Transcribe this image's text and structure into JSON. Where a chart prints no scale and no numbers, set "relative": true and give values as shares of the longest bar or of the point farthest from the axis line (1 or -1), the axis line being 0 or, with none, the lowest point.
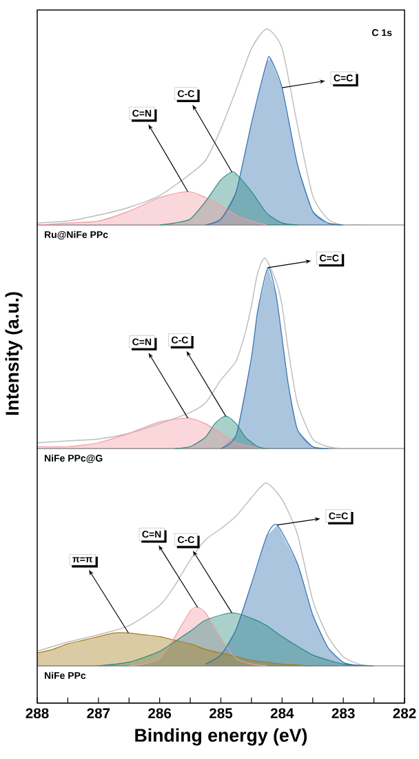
{
  "chart_data": [
    {
      "type": "area",
      "relative": true,
      "title": "Ru@NiFe PPc",
      "xlim": [
        288,
        282
      ],
      "tick_labels": false,
      "series": [
        {
          "type": "line",
          "color": "#bdbdbd",
          "x": [
            288,
            287.5,
            287,
            286.5,
            286,
            285.5,
            285.25,
            285,
            284.75,
            284.5,
            284.25,
            284,
            283.75,
            283.5,
            283.25,
            283,
            282.5,
            282
          ],
          "values": [
            0.01,
            0.02,
            0.05,
            0.09,
            0.15,
            0.26,
            0.33,
            0.49,
            0.69,
            0.9,
            1.0,
            0.9,
            0.51,
            0.15,
            0.03,
            0,
            0,
            0
          ]
        },
        {
          "color": "#f29ca3",
          "x": [
            288,
            287.5,
            287,
            286.5,
            286,
            285.54,
            285.25,
            285,
            284.75,
            284.5,
            284.25
          ],
          "values": [
            0,
            0.01,
            0.02,
            0.07,
            0.14,
            0.17,
            0.14,
            0.1,
            0.05,
            0.02,
            0
          ]
        },
        {
          "color": "#2a8a80",
          "x": [
            286,
            285.75,
            285.5,
            285.25,
            285,
            284.82,
            284.75,
            284.5,
            284.25,
            284,
            283.75
          ],
          "values": [
            0,
            0.01,
            0.03,
            0.12,
            0.23,
            0.27,
            0.26,
            0.17,
            0.06,
            0.01,
            0
          ]
        },
        {
          "color": "#2f6fad",
          "x": [
            285.25,
            285,
            284.75,
            284.5,
            284.25,
            284.19,
            284,
            283.75,
            283.5,
            283.25,
            283
          ],
          "values": [
            0,
            0.03,
            0.17,
            0.52,
            0.83,
            0.85,
            0.7,
            0.31,
            0.07,
            0.01,
            0
          ]
        }
      ],
      "annotations": [
        "C 1s",
        {
          "text": "C=N",
          "x": 285.54,
          "y": 0.17
        },
        {
          "text": "C-C",
          "x": 284.82,
          "y": 0.27
        },
        {
          "text": "C=C",
          "x": 284,
          "y": 0.7
        }
      ]
    },
    {
      "type": "area",
      "relative": true,
      "title": "NiFe PPc@G",
      "ylabel": "Intensity (a.u.)",
      "xlim": [
        288,
        282
      ],
      "tick_labels": false,
      "series": [
        {
          "type": "line",
          "color": "#bdbdbd",
          "x": [
            288,
            287.5,
            287,
            286.5,
            286,
            285.5,
            285.25,
            285,
            284.75,
            284.6,
            284.5,
            284.4,
            284.28,
            284.1,
            284,
            283.9,
            283.75,
            283.5,
            283.25,
            283,
            282.5,
            282
          ],
          "values": [
            0.03,
            0.04,
            0.05,
            0.08,
            0.13,
            0.19,
            0.24,
            0.36,
            0.46,
            0.61,
            0.75,
            0.92,
            1.0,
            0.88,
            0.75,
            0.52,
            0.24,
            0.05,
            0.01,
            0,
            0,
            0
          ]
        },
        {
          "color": "#f29ca3",
          "x": [
            288,
            287.5,
            287,
            286.5,
            286,
            285.54,
            285.25,
            285,
            284.75,
            284.5,
            284.25
          ],
          "values": [
            0.01,
            0.01,
            0.03,
            0.08,
            0.14,
            0.16,
            0.13,
            0.08,
            0.03,
            0.01,
            0
          ]
        },
        {
          "color": "#2a8a80",
          "x": [
            285.75,
            285.5,
            285.25,
            285.1,
            284.92,
            284.75,
            284.6,
            284.4,
            284.25
          ],
          "values": [
            0,
            0.01,
            0.06,
            0.13,
            0.17,
            0.13,
            0.06,
            0.01,
            0
          ]
        },
        {
          "color": "#2f6fad",
          "x": [
            285,
            284.75,
            284.5,
            284.4,
            284.23,
            284.1,
            284,
            283.9,
            283.75,
            283.5,
            283.25
          ],
          "values": [
            0,
            0.07,
            0.48,
            0.72,
            0.95,
            0.81,
            0.58,
            0.34,
            0.1,
            0.01,
            0
          ]
        }
      ],
      "annotations": [
        {
          "text": "C=N",
          "x": 285.54,
          "y": 0.16
        },
        {
          "text": "C-C",
          "x": 284.92,
          "y": 0.17
        },
        {
          "text": "C=C",
          "x": 284.23,
          "y": 0.95
        }
      ]
    },
    {
      "type": "area",
      "relative": true,
      "title": "NiFe PPc",
      "xlabel": "Binding energy (eV)",
      "xlim": [
        288,
        282
      ],
      "tick_labels": "x",
      "xticks": [
        288,
        287,
        286,
        285,
        284,
        283,
        282
      ],
      "series": [
        {
          "type": "line",
          "color": "#bdbdbd",
          "x": [
            288,
            287.5,
            287,
            286.5,
            286,
            285.75,
            285.5,
            285.25,
            285,
            284.75,
            284.5,
            284.26,
            284,
            283.75,
            283.5,
            283.25,
            283,
            282.75,
            282.5,
            282
          ],
          "values": [
            0.08,
            0.13,
            0.17,
            0.22,
            0.33,
            0.44,
            0.58,
            0.69,
            0.75,
            0.82,
            0.92,
            1.0,
            0.91,
            0.72,
            0.36,
            0.16,
            0.05,
            0.01,
            0,
            0
          ]
        },
        {
          "color": "#a67c1c",
          "x": [
            288,
            287.75,
            287.5,
            287.25,
            287,
            286.75,
            286.51,
            286.25,
            286,
            285.75,
            285.5,
            285.25,
            285,
            284.75,
            284.5,
            284.25,
            284,
            283.5
          ],
          "values": [
            0.07,
            0.09,
            0.12,
            0.14,
            0.16,
            0.18,
            0.18,
            0.17,
            0.16,
            0.14,
            0.12,
            0.09,
            0.07,
            0.05,
            0.03,
            0.02,
            0.01,
            0
          ]
        },
        {
          "color": "#f29ca3",
          "x": [
            286.5,
            286.25,
            286,
            285.75,
            285.5,
            285.38,
            285.25,
            285,
            284.75,
            284.5,
            284.25
          ],
          "values": [
            0,
            0.01,
            0.04,
            0.16,
            0.3,
            0.32,
            0.29,
            0.15,
            0.04,
            0.01,
            0
          ]
        },
        {
          "color": "#2a8a80",
          "x": [
            287,
            286.5,
            286,
            285.5,
            285.25,
            284.82,
            284.5,
            284.25,
            284,
            283.5,
            283,
            282.5
          ],
          "values": [
            0,
            0.02,
            0.08,
            0.19,
            0.25,
            0.29,
            0.26,
            0.22,
            0.16,
            0.06,
            0.01,
            0
          ]
        },
        {
          "color": "#2f6fad",
          "x": [
            285.25,
            285,
            284.75,
            284.5,
            284.25,
            284.08,
            283.75,
            283.5,
            283.25,
            283,
            282.75
          ],
          "values": [
            0.01,
            0.06,
            0.2,
            0.45,
            0.71,
            0.77,
            0.56,
            0.28,
            0.1,
            0.02,
            0
          ]
        }
      ],
      "annotations": [
        {
          "text": "π=π",
          "x": 286.51,
          "y": 0.18
        },
        {
          "text": "C=N",
          "x": 285.38,
          "y": 0.32
        },
        {
          "text": "C-C",
          "x": 284.82,
          "y": 0.29
        },
        {
          "text": "C=C",
          "x": 284.08,
          "y": 0.77
        }
      ]
    }
  ]
}
